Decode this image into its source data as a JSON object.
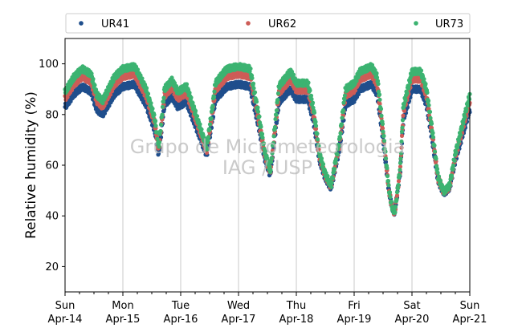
{
  "chart_data": {
    "type": "scatter",
    "title": "",
    "ylabel": "Relative humidity (%)",
    "xlabel": "",
    "ylim": [
      10,
      110
    ],
    "yticks": [
      20,
      40,
      60,
      80,
      100
    ],
    "x_range_days": [
      0,
      7
    ],
    "x_ticks": [
      {
        "day": "Sun",
        "date": "Apr-14"
      },
      {
        "day": "Mon",
        "date": "Apr-15"
      },
      {
        "day": "Tue",
        "date": "Apr-16"
      },
      {
        "day": "Wed",
        "date": "Apr-17"
      },
      {
        "day": "Thu",
        "date": "Apr-18"
      },
      {
        "day": "Fri",
        "date": "Apr-19"
      },
      {
        "day": "Sat",
        "date": "Apr-20"
      },
      {
        "day": "Sun",
        "date": "Apr-21"
      }
    ],
    "grid": "vertical",
    "legend_position": "top",
    "watermark": [
      "Grupo de Micrometeorologia",
      "IAG / USP"
    ],
    "series": [
      {
        "name": "UR41",
        "color": "#1f4e8c",
        "offset": 0
      },
      {
        "name": "UR62",
        "color": "#cd5c57",
        "offset": 4
      },
      {
        "name": "UR73",
        "color": "#3cb371",
        "offset": 7
      }
    ],
    "base_curve_ur41": [
      [
        0.0,
        83
      ],
      [
        0.15,
        88
      ],
      [
        0.3,
        91
      ],
      [
        0.45,
        89
      ],
      [
        0.55,
        82
      ],
      [
        0.65,
        80
      ],
      [
        0.75,
        84
      ],
      [
        0.85,
        88
      ],
      [
        1.0,
        91
      ],
      [
        1.2,
        92
      ],
      [
        1.3,
        88
      ],
      [
        1.4,
        84
      ],
      [
        1.55,
        74
      ],
      [
        1.62,
        64
      ],
      [
        1.72,
        84
      ],
      [
        1.85,
        87
      ],
      [
        1.95,
        83
      ],
      [
        2.1,
        85
      ],
      [
        2.2,
        79
      ],
      [
        2.35,
        70
      ],
      [
        2.45,
        64
      ],
      [
        2.55,
        78
      ],
      [
        2.6,
        86
      ],
      [
        2.8,
        91
      ],
      [
        3.0,
        92
      ],
      [
        3.2,
        91
      ],
      [
        3.35,
        75
      ],
      [
        3.45,
        63
      ],
      [
        3.55,
        56
      ],
      [
        3.7,
        85
      ],
      [
        3.9,
        90
      ],
      [
        4.0,
        86
      ],
      [
        4.2,
        86
      ],
      [
        4.3,
        77
      ],
      [
        4.4,
        62
      ],
      [
        4.5,
        55
      ],
      [
        4.6,
        51
      ],
      [
        4.75,
        67
      ],
      [
        4.85,
        84
      ],
      [
        5.0,
        86
      ],
      [
        5.1,
        90
      ],
      [
        5.3,
        92
      ],
      [
        5.4,
        88
      ],
      [
        5.5,
        70
      ],
      [
        5.6,
        50
      ],
      [
        5.65,
        44
      ],
      [
        5.7,
        41
      ],
      [
        5.8,
        58
      ],
      [
        5.85,
        78
      ],
      [
        6.0,
        90
      ],
      [
        6.15,
        90
      ],
      [
        6.25,
        84
      ],
      [
        6.35,
        70
      ],
      [
        6.45,
        54
      ],
      [
        6.55,
        49
      ],
      [
        6.65,
        51
      ],
      [
        6.75,
        62
      ],
      [
        6.9,
        74
      ],
      [
        7.0,
        82
      ]
    ],
    "points_per_day": 144
  }
}
